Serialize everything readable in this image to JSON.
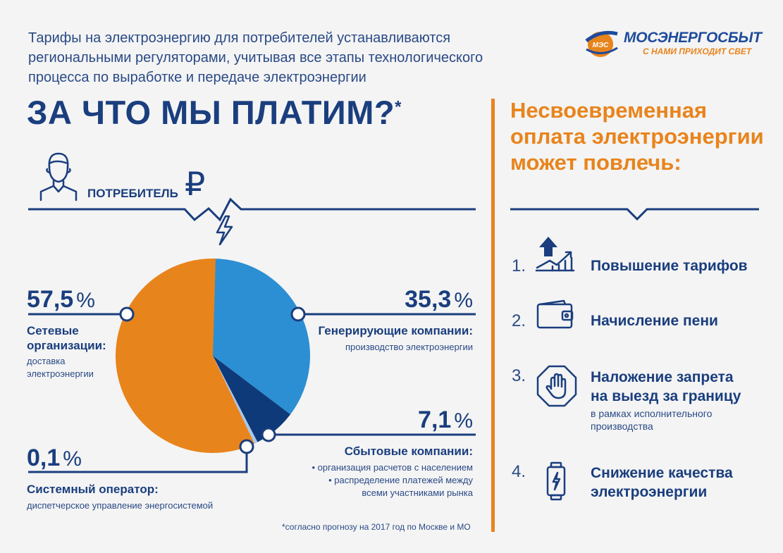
{
  "intro": "Тарифы на электроэнергию для потребителей устанавливаются региональными регуляторами, учитывая все этапы технологического процесса по выработке и передаче электроэнергии",
  "title": "ЗА ЧТО МЫ ПЛАТИМ?",
  "title_mark": "*",
  "logo": {
    "badge": "МЭС",
    "name": "МОСЭНЕРГОСБЫТ",
    "slogan": "С НАМИ ПРИХОДИТ СВЕТ"
  },
  "consumer_label": "ПОТРЕБИТЕЛЬ",
  "currency_symbol": "₽",
  "colors": {
    "navy": "#1a3e7e",
    "orange": "#e8841c",
    "blue": "#2c8fd3",
    "dark_navy": "#0e3a7a",
    "light_blue": "#a9c8ea"
  },
  "chart_data": {
    "type": "pie",
    "unit": "%",
    "slices": [
      {
        "value": 35.3,
        "value_label": "35,3",
        "name": "Генерирующие компании:",
        "desc": [
          "производство электроэнергии"
        ],
        "color": "#2c8fd3"
      },
      {
        "value": 7.1,
        "value_label": "7,1",
        "name": "Сбытовые компании:",
        "desc": [
          "• организация расчетов с населением",
          "• распределение платежей между",
          "всеми участниками рынка"
        ],
        "color": "#0e3a7a"
      },
      {
        "value": 0.1,
        "value_label": "0,1",
        "name": "Системный оператор:",
        "desc": [
          "диспетчерское управление энергосистемой"
        ],
        "color": "#a9c8ea"
      },
      {
        "value": 57.5,
        "value_label": "57,5",
        "name": "Сетевые организации:",
        "desc": [
          "доставка электроэнергии"
        ],
        "color": "#e8841c"
      }
    ]
  },
  "labels": {
    "net_name_1": "Сетевые",
    "net_name_2": "организации:",
    "net_desc_1": "доставка",
    "net_desc_2": "электроэнергии"
  },
  "footnote": "*согласно прогнозу на 2017 год по Москве и МО",
  "consequences": {
    "title_lines": [
      "Несвоевременная",
      "оплата электроэнергии",
      "может повлечь:"
    ],
    "items": [
      {
        "num": "1.",
        "text_lines": [
          "Повышение тарифов"
        ],
        "icon": "tariff-growth-icon"
      },
      {
        "num": "2.",
        "text_lines": [
          "Начисление пени"
        ],
        "icon": "wallet-icon"
      },
      {
        "num": "3.",
        "text_lines": [
          "Наложение запрета",
          "на выезд за границу"
        ],
        "sub_lines": [
          "в рамках исполнительного",
          "производства"
        ],
        "icon": "stop-hand-icon"
      },
      {
        "num": "4.",
        "text_lines": [
          "Снижение качества",
          "электроэнергии"
        ],
        "icon": "battery-icon"
      }
    ]
  }
}
